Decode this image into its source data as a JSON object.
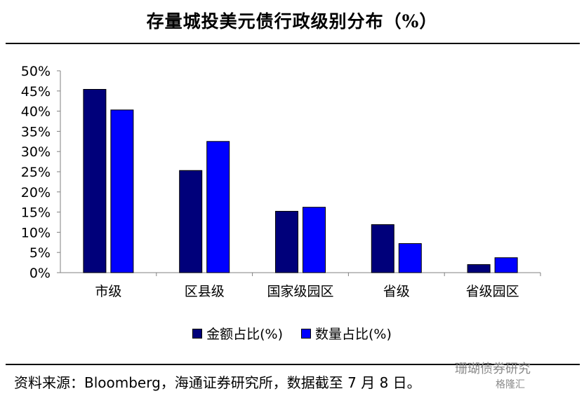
{
  "title": "存量城投美元债行政级别分布（%）",
  "chart_data": {
    "type": "bar",
    "categories": [
      "市级",
      "区县级",
      "国家级园区",
      "省级",
      "省级园区"
    ],
    "series": [
      {
        "name": "金额占比(%)",
        "color": "#00007a",
        "values": [
          45.4,
          25.3,
          15.2,
          11.9,
          2.0
        ]
      },
      {
        "name": "数量占比(%)",
        "color": "#0000ff",
        "values": [
          40.3,
          32.5,
          16.2,
          7.2,
          3.7
        ]
      }
    ],
    "ylim": [
      0,
      50
    ],
    "yticks": [
      "0%",
      "5%",
      "10%",
      "15%",
      "20%",
      "25%",
      "30%",
      "35%",
      "40%",
      "45%",
      "50%"
    ],
    "ytick_values": [
      0,
      5,
      10,
      15,
      20,
      25,
      30,
      35,
      40,
      45,
      50
    ],
    "grid": false,
    "legend_position": "bottom"
  },
  "source": "资料来源：Bloomberg，海通证券研究所，数据截至 7 月 8 日。",
  "watermark": {
    "line1": "珊瑚债券研究",
    "line2": "格隆汇"
  }
}
